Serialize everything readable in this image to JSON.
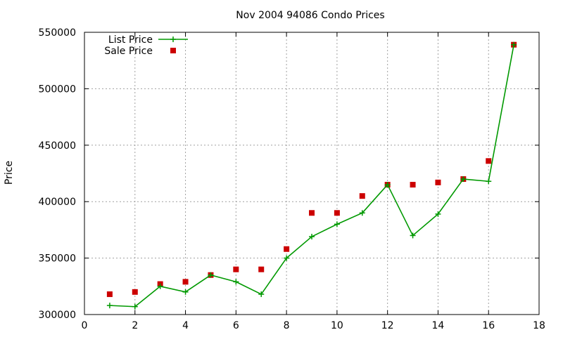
{
  "chart_data": {
    "type": "line",
    "title": "Nov 2004 94086 Condo Prices",
    "xlabel": "",
    "ylabel": "Price",
    "xlim": [
      0,
      18
    ],
    "ylim": [
      300000,
      550000
    ],
    "x_ticks": [
      0,
      2,
      4,
      6,
      8,
      10,
      12,
      14,
      16,
      18
    ],
    "y_ticks": [
      300000,
      350000,
      400000,
      450000,
      500000,
      550000
    ],
    "grid": true,
    "legend_position": "top-left",
    "series": [
      {
        "name": "List Price",
        "style": "line-with-plus-markers",
        "color": "#009900",
        "x": [
          1,
          2,
          3,
          4,
          5,
          6,
          7,
          8,
          9,
          10,
          11,
          12,
          13,
          14,
          15,
          16,
          17
        ],
        "values": [
          308000,
          307000,
          325000,
          320000,
          335000,
          329000,
          318000,
          350000,
          369000,
          380000,
          390000,
          415000,
          370000,
          389000,
          420000,
          418000,
          539000
        ]
      },
      {
        "name": "Sale Price",
        "style": "square-markers",
        "color": "#cc0000",
        "x": [
          1,
          2,
          3,
          4,
          5,
          6,
          7,
          8,
          9,
          10,
          11,
          12,
          13,
          14,
          15,
          16,
          17
        ],
        "values": [
          318000,
          320000,
          327000,
          329000,
          335000,
          340000,
          340000,
          358000,
          390000,
          390000,
          405000,
          415000,
          415000,
          417000,
          420000,
          436000,
          539000
        ]
      }
    ]
  }
}
